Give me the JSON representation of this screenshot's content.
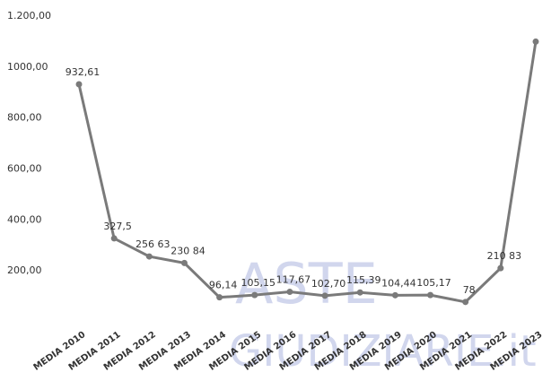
{
  "chart_data": {
    "type": "line",
    "categories": [
      "MEDIA 2010",
      "MEDIA 2011",
      "MEDIA 2012",
      "MEDIA 2013",
      "MEDIA 2014",
      "MEDIA 2015",
      "MEDIA 2016",
      "MEDIA 2017",
      "MEDIA 2018",
      "MEDIA 2019",
      "MEDIA 2020",
      "MEDIA 2021",
      "MEDIA 2022",
      "MEDIA 2023"
    ],
    "values": [
      932.61,
      327.5,
      256.63,
      230.84,
      96.14,
      105.15,
      117.67,
      102.7,
      115.39,
      104.44,
      105.17,
      78,
      210.83,
      1100
    ],
    "value_labels": [
      "932,61",
      "327,5",
      "256 63",
      "230 84",
      "96,14",
      "105,15",
      "117,67",
      "102,70",
      "115,39",
      "104,44",
      "105,17",
      "78",
      "210 83",
      null
    ],
    "color": "#7a7a7a",
    "ylim": [
      0,
      1200
    ],
    "yticks": [
      {
        "value": 200,
        "label": "200,00"
      },
      {
        "value": 400,
        "label": "400,00"
      },
      {
        "value": 600,
        "label": "600,00"
      },
      {
        "value": 800,
        "label": "800,00"
      },
      {
        "value": 1000,
        "label": "1000,00"
      },
      {
        "value": 1200,
        "label": "1.200,00"
      }
    ],
    "grid": false,
    "watermark": [
      "ASTE",
      "GIUDIZIARIE.it"
    ]
  }
}
